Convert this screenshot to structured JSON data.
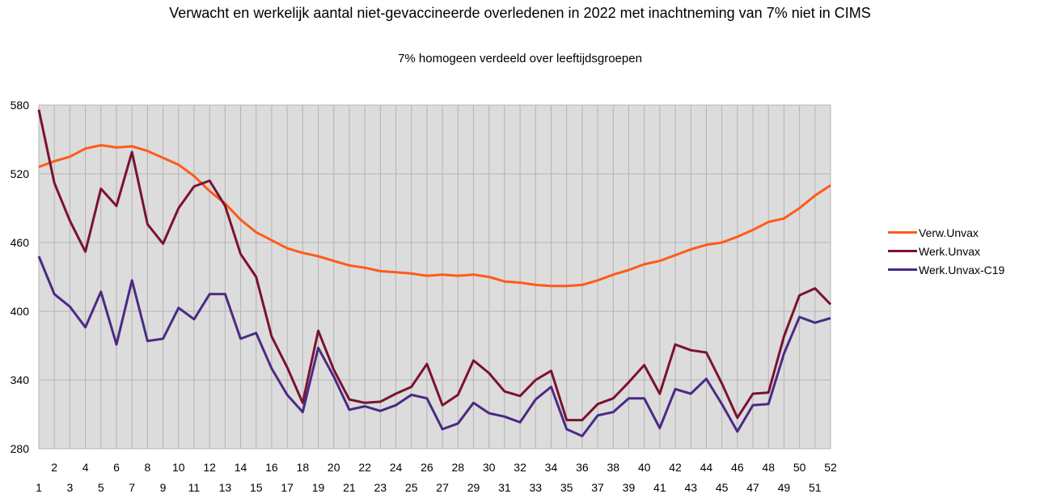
{
  "chart_data": {
    "type": "line",
    "title": "Verwacht en werkelijk aantal niet-gevaccineerde overledenen in 2022 met inachtneming van 7% niet in CIMS",
    "subtitle": "7% homogeen verdeeld over leeftijdsgroepen",
    "xlabel": "",
    "ylabel": "",
    "ylim": [
      280,
      580
    ],
    "yticks": [
      "580",
      "520",
      "460",
      "400",
      "340",
      "280"
    ],
    "ytick_values": [
      580,
      520,
      460,
      400,
      340,
      280
    ],
    "x": [
      1,
      2,
      3,
      4,
      5,
      6,
      7,
      8,
      9,
      10,
      11,
      12,
      13,
      14,
      15,
      16,
      17,
      18,
      19,
      20,
      21,
      22,
      23,
      24,
      25,
      26,
      27,
      28,
      29,
      30,
      31,
      32,
      33,
      34,
      35,
      36,
      37,
      38,
      39,
      40,
      41,
      42,
      43,
      44,
      45,
      46,
      47,
      48,
      49,
      50,
      51,
      52
    ],
    "xticks_top": [
      "2",
      "4",
      "6",
      "8",
      "10",
      "12",
      "14",
      "16",
      "18",
      "20",
      "22",
      "24",
      "26",
      "28",
      "30",
      "32",
      "34",
      "36",
      "38",
      "40",
      "42",
      "44",
      "46",
      "48",
      "50",
      "52"
    ],
    "xticks_bottom": [
      "1",
      "3",
      "5",
      "7",
      "9",
      "11",
      "13",
      "15",
      "17",
      "19",
      "21",
      "23",
      "25",
      "27",
      "29",
      "31",
      "33",
      "35",
      "37",
      "39",
      "41",
      "43",
      "45",
      "47",
      "49",
      "51"
    ],
    "grid": true,
    "legend_position": "right",
    "plot_background": "#dcdcdc",
    "series": [
      {
        "name": "Verw.Unvax",
        "color": "#ff5a1a",
        "values": [
          526,
          531,
          535,
          542,
          545,
          543,
          544,
          540,
          534,
          528,
          518,
          505,
          494,
          480,
          469,
          462,
          455,
          451,
          448,
          444,
          440,
          438,
          435,
          434,
          433,
          431,
          432,
          431,
          432,
          430,
          426,
          425,
          423,
          422,
          422,
          423,
          427,
          432,
          436,
          441,
          444,
          449,
          454,
          458,
          460,
          465,
          471,
          478,
          481,
          490,
          501,
          510
        ]
      },
      {
        "name": "Werk.Unvax",
        "color": "#7b1230",
        "values": [
          576,
          512,
          479,
          452,
          507,
          492,
          539,
          476,
          459,
          490,
          509,
          514,
          492,
          450,
          430,
          378,
          351,
          320,
          383,
          349,
          323,
          320,
          321,
          328,
          334,
          354,
          318,
          327,
          357,
          346,
          330,
          326,
          340,
          348,
          305,
          305,
          319,
          324,
          338,
          353,
          328,
          371,
          366,
          364,
          337,
          307,
          328,
          329,
          378,
          414,
          420,
          406
        ]
      },
      {
        "name": "Werk.Unvax-C19",
        "color": "#4b2a85",
        "values": [
          448,
          415,
          404,
          386,
          417,
          371,
          427,
          374,
          376,
          403,
          393,
          415,
          415,
          376,
          381,
          350,
          327,
          312,
          368,
          343,
          314,
          317,
          313,
          318,
          327,
          324,
          297,
          302,
          320,
          311,
          308,
          303,
          323,
          334,
          297,
          291,
          309,
          312,
          324,
          324,
          298,
          332,
          328,
          341,
          319,
          295,
          318,
          319,
          363,
          395,
          390,
          394
        ]
      }
    ]
  }
}
